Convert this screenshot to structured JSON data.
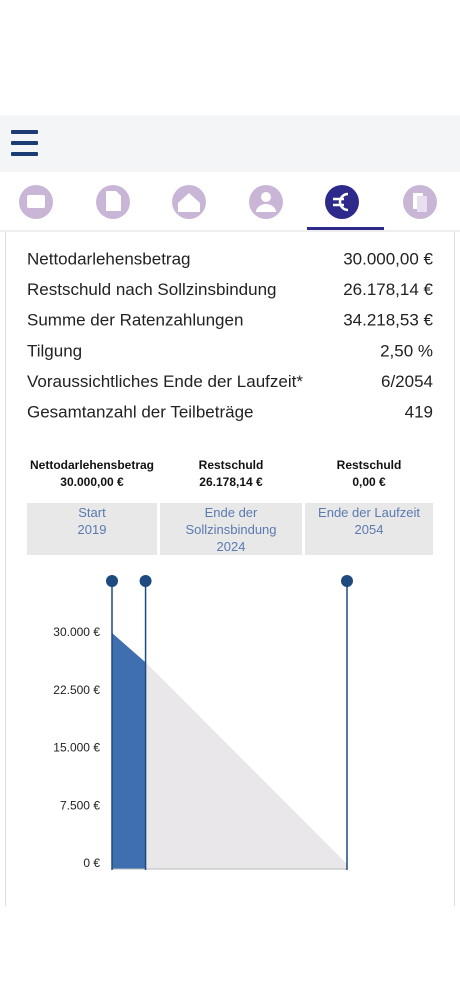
{
  "summary": {
    "rows": [
      {
        "label": "Nettodarlehensbetrag",
        "value": "30.000,00 €"
      },
      {
        "label": "Restschuld nach Sollzinsbindung",
        "value": "26.178,14 €"
      },
      {
        "label": "Summe der Ratenzahlungen",
        "value": "34.218,53 €"
      },
      {
        "label": "Tilgung",
        "value": "2,50 %"
      },
      {
        "label": "Voraussichtliches Ende der Laufzeit*",
        "value": "6/2054"
      },
      {
        "label": "Gesamtanzahl der Teilbeträge",
        "value": "419"
      }
    ]
  },
  "chart_data": {
    "type": "area",
    "point_names": [
      "Nettodarlehensbetrag",
      "Restschuld",
      "Restschuld"
    ],
    "phase_names": [
      "Start",
      "Ende der Sollzinsbindung",
      "Ende der Laufzeit"
    ],
    "x": [
      2019,
      2024,
      2054
    ],
    "values": [
      30000,
      26178.14,
      0
    ],
    "value_labels": [
      "30.000,00 €",
      "26.178,14 €",
      "0,00 €"
    ],
    "xlim": [
      2019,
      2054
    ],
    "ylim": [
      0,
      37000
    ],
    "yticks": [
      {
        "value": 0,
        "label": "0 €"
      },
      {
        "value": 7500,
        "label": "7.500 €"
      },
      {
        "value": 15000,
        "label": "15.000 €"
      },
      {
        "value": 22500,
        "label": "22.500 €"
      },
      {
        "value": 30000,
        "label": "30.000 €"
      }
    ],
    "fill_colors": [
      "#3f6fae",
      "#e9e7ea"
    ],
    "line_color": "#1f4a80"
  }
}
